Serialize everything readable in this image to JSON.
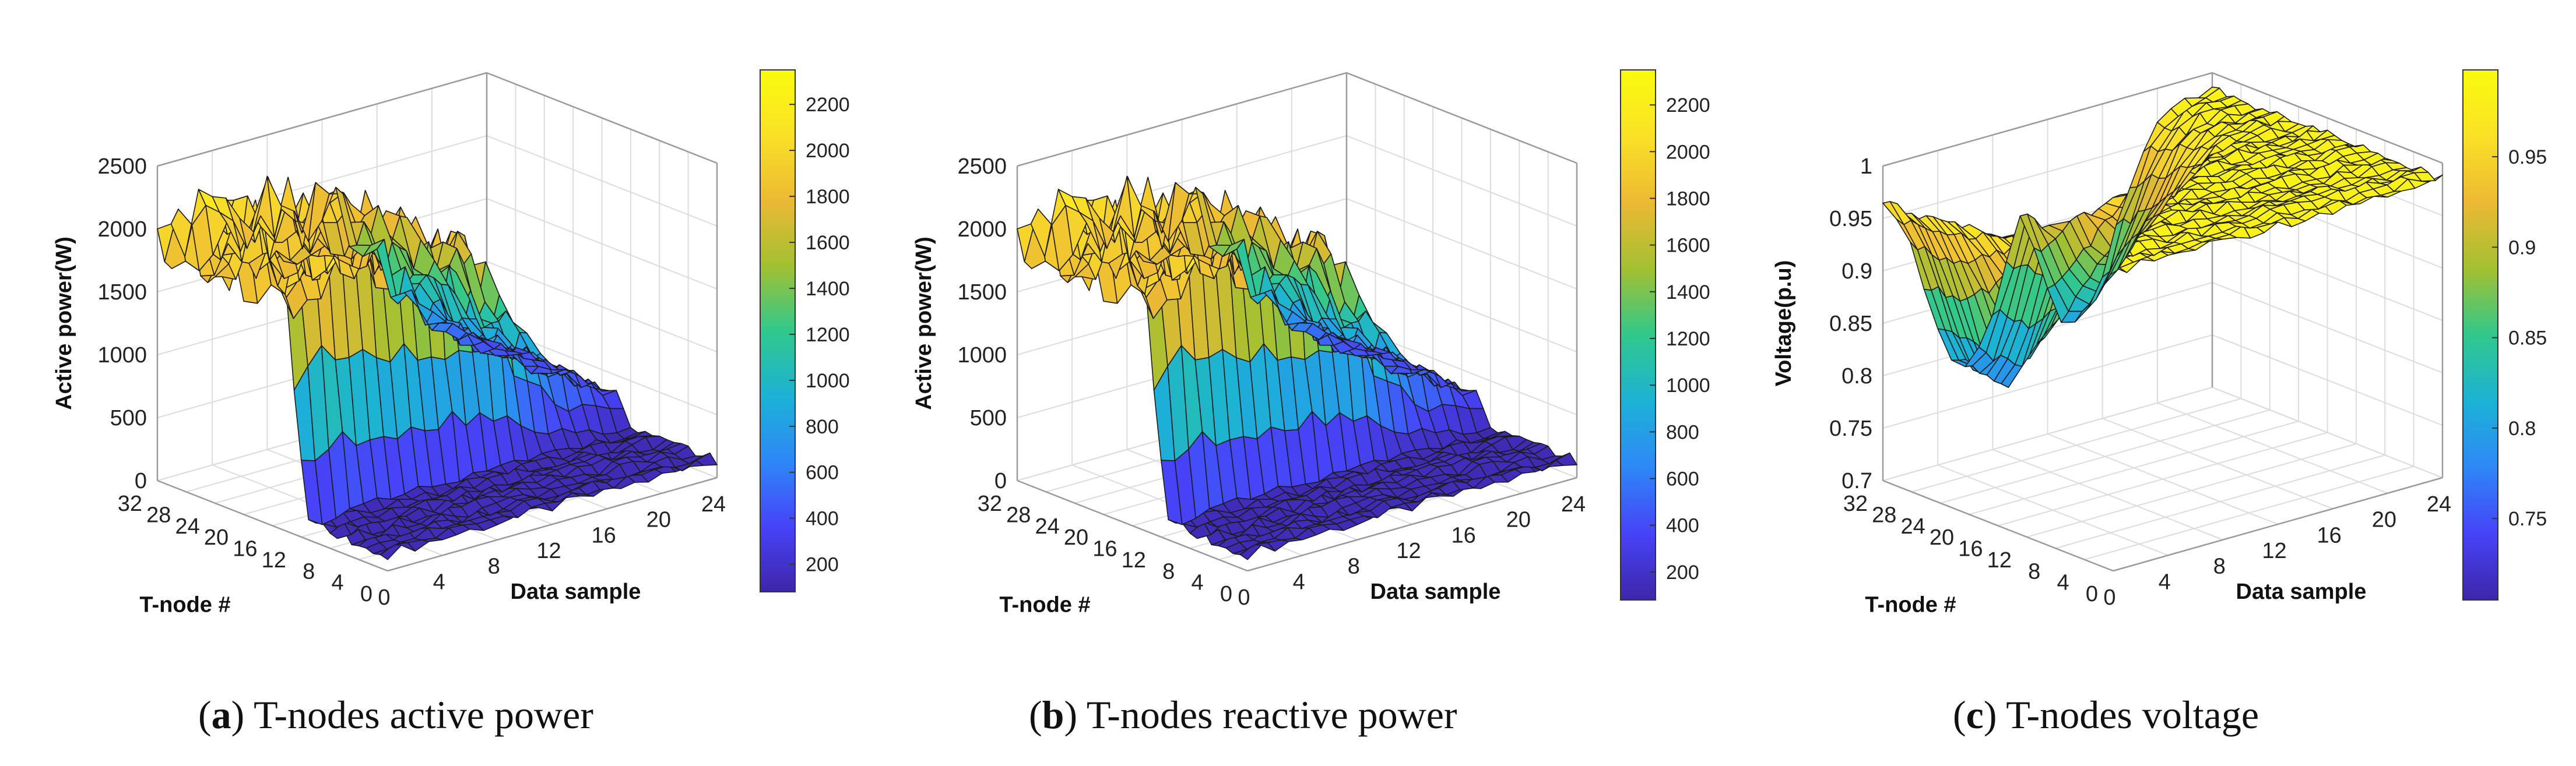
{
  "chart_data": [
    {
      "type": "surface",
      "panel_letter": "a",
      "caption": "T-nodes active power",
      "xlabel": "Data sample",
      "ylabel": "T-node #",
      "zlabel": "Active power(W)",
      "xlim": [
        0,
        24
      ],
      "ylim": [
        0,
        32
      ],
      "zlim": [
        0,
        2500
      ],
      "xticks": [
        "0",
        "4",
        "8",
        "12",
        "16",
        "20",
        "24"
      ],
      "yticks": [
        "0",
        "4",
        "8",
        "12",
        "16",
        "20",
        "24",
        "28",
        "32"
      ],
      "zticks": [
        "0",
        "500",
        "1000",
        "1500",
        "2000",
        "2500"
      ],
      "colorbar_ticks": [
        "200",
        "400",
        "600",
        "800",
        "1000",
        "1200",
        "1400",
        "1600",
        "1800",
        "2000",
        "2200"
      ],
      "colorbar_range": [
        80,
        2350
      ],
      "colormap": [
        "#3e26a8",
        "#4743f8",
        "#2e87f7",
        "#1cb2d5",
        "#30c88c",
        "#a3c031",
        "#ecb934",
        "#fae127",
        "#f9fb0e"
      ],
      "base_profile": {
        "t": [
          0,
          2,
          4,
          6,
          8,
          10,
          12,
          14,
          16,
          18,
          20,
          22,
          24
        ],
        "v": [
          1900,
          1950,
          2050,
          2050,
          2000,
          1900,
          1850,
          1700,
          1300,
          900,
          650,
          480,
          380
        ]
      },
      "low_node_rows": [
        0,
        1,
        2,
        3,
        4,
        5,
        6,
        7,
        8,
        9,
        10,
        11
      ],
      "low_node_level": 150
    },
    {
      "type": "surface",
      "panel_letter": "b",
      "caption": "T-nodes reactive power",
      "xlabel": "Data sample",
      "ylabel": "T-node #",
      "zlabel": "Active power(W)",
      "xlim": [
        0,
        24
      ],
      "ylim": [
        0,
        32
      ],
      "zlim": [
        0,
        2500
      ],
      "xticks": [
        "0",
        "4",
        "8",
        "12",
        "16",
        "20",
        "24"
      ],
      "yticks": [
        "0",
        "4",
        "8",
        "12",
        "16",
        "20",
        "24",
        "28",
        "32"
      ],
      "zticks": [
        "0",
        "500",
        "1000",
        "1500",
        "2000",
        "2500"
      ],
      "colorbar_ticks": [
        "200",
        "400",
        "600",
        "800",
        "1000",
        "1200",
        "1400",
        "1600",
        "1800",
        "2000",
        "2200"
      ],
      "colorbar_range": [
        80,
        2350
      ],
      "colormap": [
        "#3e26a8",
        "#4743f8",
        "#2e87f7",
        "#1cb2d5",
        "#30c88c",
        "#a3c031",
        "#ecb934",
        "#fae127",
        "#f9fb0e"
      ],
      "base_profile": {
        "t": [
          0,
          2,
          4,
          6,
          8,
          10,
          12,
          14,
          16,
          18,
          20,
          22,
          24
        ],
        "v": [
          1900,
          1950,
          2050,
          2050,
          2000,
          1900,
          1850,
          1700,
          1300,
          900,
          650,
          480,
          380
        ]
      },
      "low_node_rows": [
        0,
        1,
        2,
        3,
        4,
        5,
        6,
        7,
        8,
        9,
        10,
        11
      ],
      "low_node_level": 150
    },
    {
      "type": "surface",
      "panel_letter": "c",
      "caption": "T-nodes voltage",
      "xlabel": "Data sample",
      "ylabel": "T-node #",
      "zlabel": "Voltage(p.u)",
      "xlim": [
        0,
        24
      ],
      "ylim": [
        0,
        32
      ],
      "zlim": [
        0.7,
        1.0
      ],
      "xticks": [
        "0",
        "4",
        "8",
        "12",
        "16",
        "20",
        "24"
      ],
      "yticks": [
        "0",
        "4",
        "8",
        "12",
        "16",
        "20",
        "24",
        "28",
        "32"
      ],
      "zticks": [
        "0.7",
        "0.75",
        "0.8",
        "0.85",
        "0.9",
        "0.95",
        "1"
      ],
      "colorbar_ticks": [
        "0.75",
        "0.8",
        "0.85",
        "0.9",
        "0.95"
      ],
      "colorbar_range": [
        0.705,
        0.998
      ],
      "colormap": [
        "#3e26a8",
        "#4743f8",
        "#2e87f7",
        "#1cb2d5",
        "#30c88c",
        "#a3c031",
        "#ecb934",
        "#fae127",
        "#f9fb0e"
      ],
      "voltage_profile": {
        "high": 0.99,
        "dip_depth": 0.2,
        "dip_center_t": 6,
        "dip_width_t": 7
      }
    }
  ]
}
